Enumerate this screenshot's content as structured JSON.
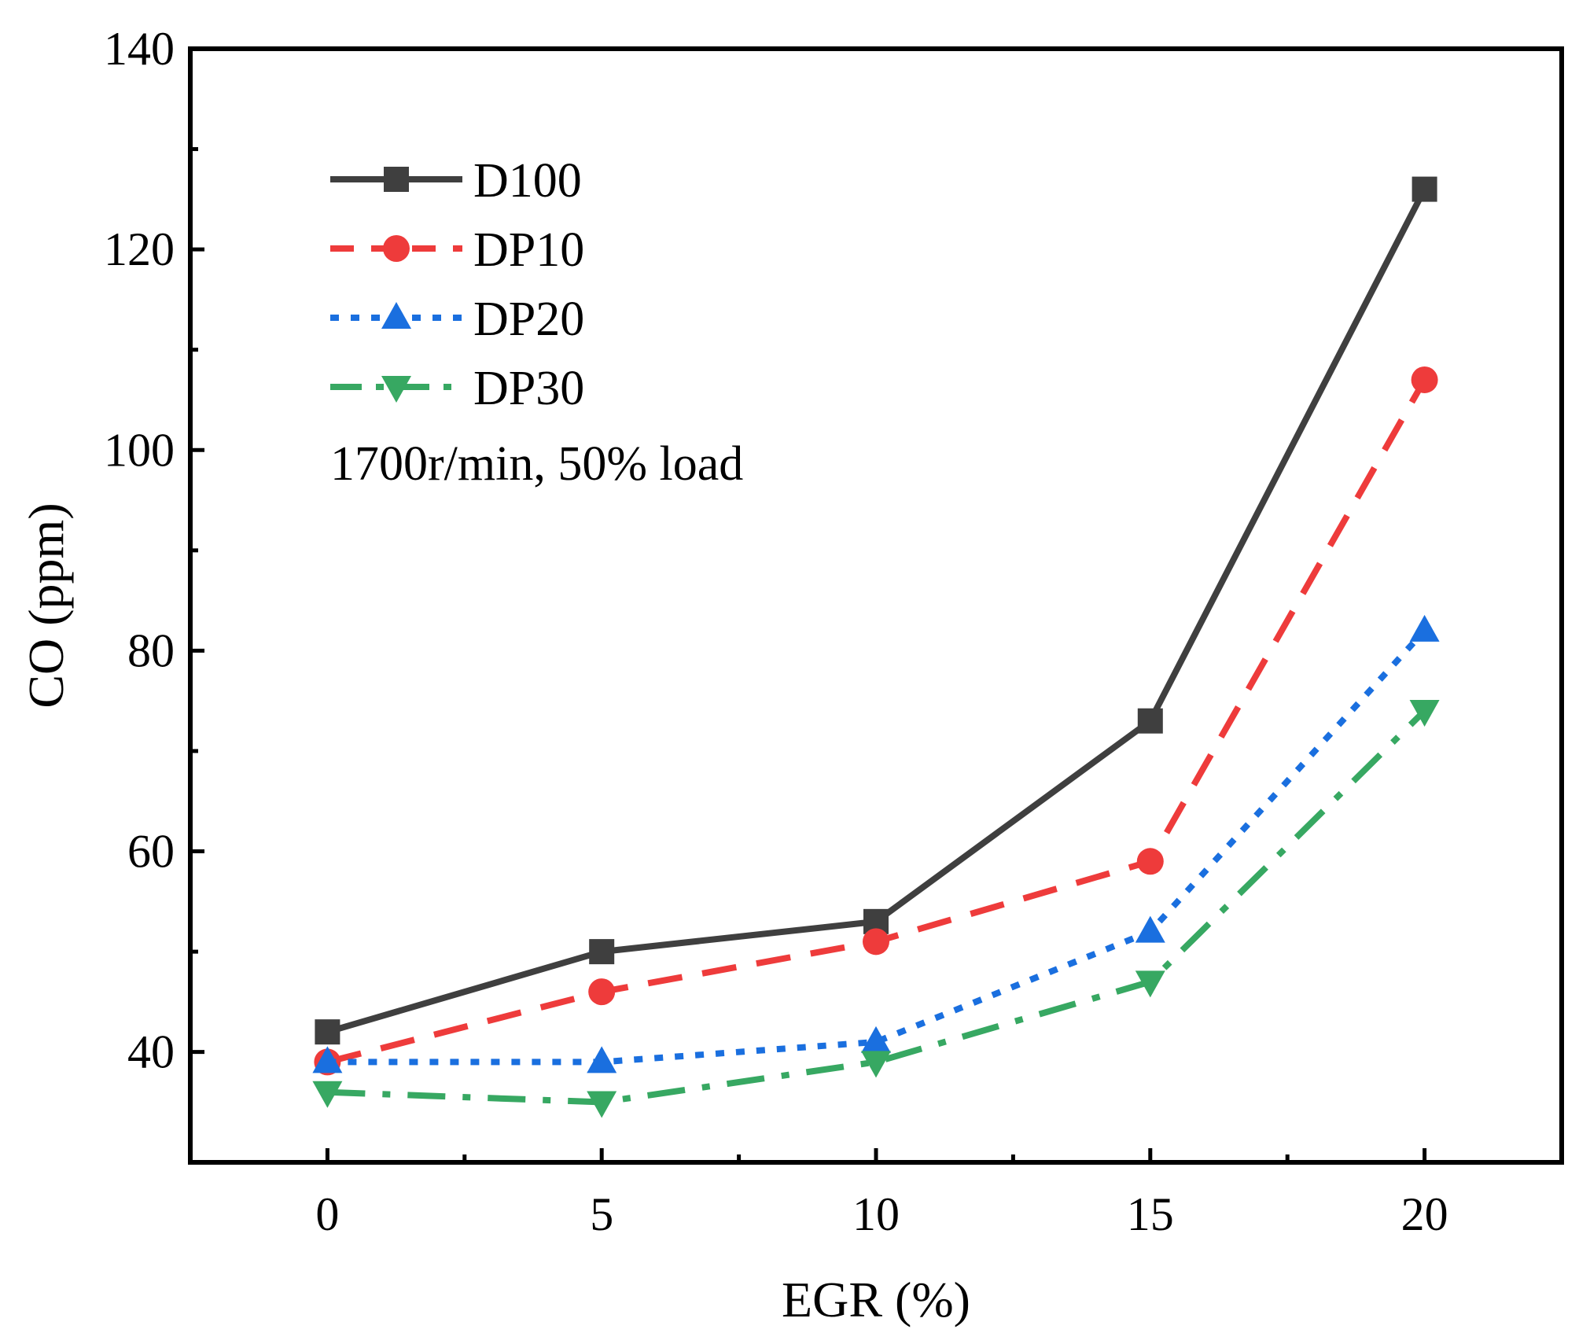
{
  "chart_data": {
    "type": "line",
    "title": "",
    "xlabel": "EGR (%)",
    "ylabel": "CO (ppm)",
    "x": [
      0,
      5,
      10,
      15,
      20
    ],
    "xlim": [
      -2.5,
      22.5
    ],
    "ylim": [
      29,
      140
    ],
    "xticks": [
      0,
      5,
      10,
      15,
      20
    ],
    "xtick_labels": [
      "0",
      "5",
      "10",
      "15",
      "20"
    ],
    "yticks": [
      40,
      60,
      80,
      100,
      120,
      140
    ],
    "ytick_labels": [
      "40",
      "60",
      "80",
      "100",
      "120",
      "140"
    ],
    "grid": false,
    "legend_position": "top-left",
    "annotation": "1700r/min, 50% load",
    "series": [
      {
        "name": "D100",
        "values": [
          42,
          50,
          53,
          73,
          126
        ],
        "color": "#3f3f3f",
        "marker": "square",
        "dash": "solid"
      },
      {
        "name": "DP10",
        "values": [
          39,
          46,
          51,
          59,
          107
        ],
        "color": "#ee3b3b",
        "marker": "circle",
        "dash": "dash"
      },
      {
        "name": "DP20",
        "values": [
          39,
          39,
          41,
          52,
          82
        ],
        "color": "#1a6fdf",
        "marker": "triangle-up",
        "dash": "dot"
      },
      {
        "name": "DP30",
        "values": [
          36,
          35,
          39,
          47,
          74
        ],
        "color": "#37a862",
        "marker": "triangle-down",
        "dash": "dashdot"
      }
    ]
  }
}
